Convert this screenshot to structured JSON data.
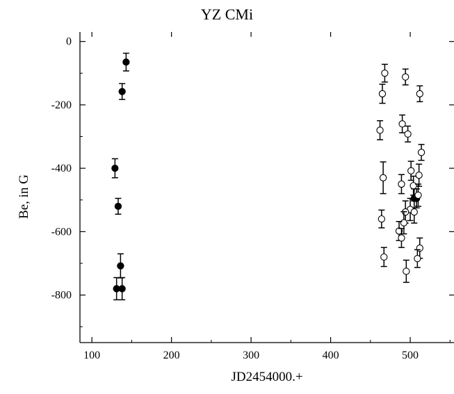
{
  "chart_data": {
    "type": "scatter",
    "title": "YZ CMi",
    "xlabel": "JD2454000.+",
    "ylabel": "Be, in G",
    "xlim": [
      85,
      555
    ],
    "ylim": [
      -950,
      30
    ],
    "xticks": [
      100,
      200,
      300,
      400,
      500
    ],
    "yticks": [
      0,
      -200,
      -400,
      -600,
      -800
    ],
    "grid": false,
    "series": [
      {
        "marker": "filled-circle",
        "points": [
          {
            "x": 143,
            "y": -65,
            "err": 28
          },
          {
            "x": 138,
            "y": -158,
            "err": 25
          },
          {
            "x": 129,
            "y": -400,
            "err": 30
          },
          {
            "x": 133,
            "y": -520,
            "err": 25
          },
          {
            "x": 136,
            "y": -708,
            "err": 38
          },
          {
            "x": 131,
            "y": -780,
            "err": 35
          },
          {
            "x": 138,
            "y": -780,
            "err": 35
          },
          {
            "x": 505,
            "y": -495,
            "err": 30
          },
          {
            "x": 508,
            "y": -495,
            "err": 30
          }
        ]
      },
      {
        "marker": "open-circle",
        "points": [
          {
            "x": 468,
            "y": -100,
            "err": 28
          },
          {
            "x": 494,
            "y": -112,
            "err": 25
          },
          {
            "x": 465,
            "y": -165,
            "err": 30
          },
          {
            "x": 512,
            "y": -165,
            "err": 25
          },
          {
            "x": 490,
            "y": -260,
            "err": 28
          },
          {
            "x": 462,
            "y": -280,
            "err": 30
          },
          {
            "x": 497,
            "y": -292,
            "err": 25
          },
          {
            "x": 514,
            "y": -350,
            "err": 25
          },
          {
            "x": 501,
            "y": -408,
            "err": 30
          },
          {
            "x": 466,
            "y": -430,
            "err": 50
          },
          {
            "x": 511,
            "y": -422,
            "err": 35
          },
          {
            "x": 489,
            "y": -450,
            "err": 30
          },
          {
            "x": 504,
            "y": -455,
            "err": 30
          },
          {
            "x": 510,
            "y": -485,
            "err": 35
          },
          {
            "x": 500,
            "y": -530,
            "err": 35
          },
          {
            "x": 494,
            "y": -538,
            "err": 35
          },
          {
            "x": 505,
            "y": -538,
            "err": 35
          },
          {
            "x": 464,
            "y": -560,
            "err": 28
          },
          {
            "x": 492,
            "y": -572,
            "err": 35
          },
          {
            "x": 486,
            "y": -598,
            "err": 30
          },
          {
            "x": 489,
            "y": -620,
            "err": 30
          },
          {
            "x": 512,
            "y": -652,
            "err": 32
          },
          {
            "x": 467,
            "y": -680,
            "err": 30
          },
          {
            "x": 509,
            "y": -685,
            "err": 28
          },
          {
            "x": 495,
            "y": -725,
            "err": 35
          }
        ]
      }
    ]
  }
}
